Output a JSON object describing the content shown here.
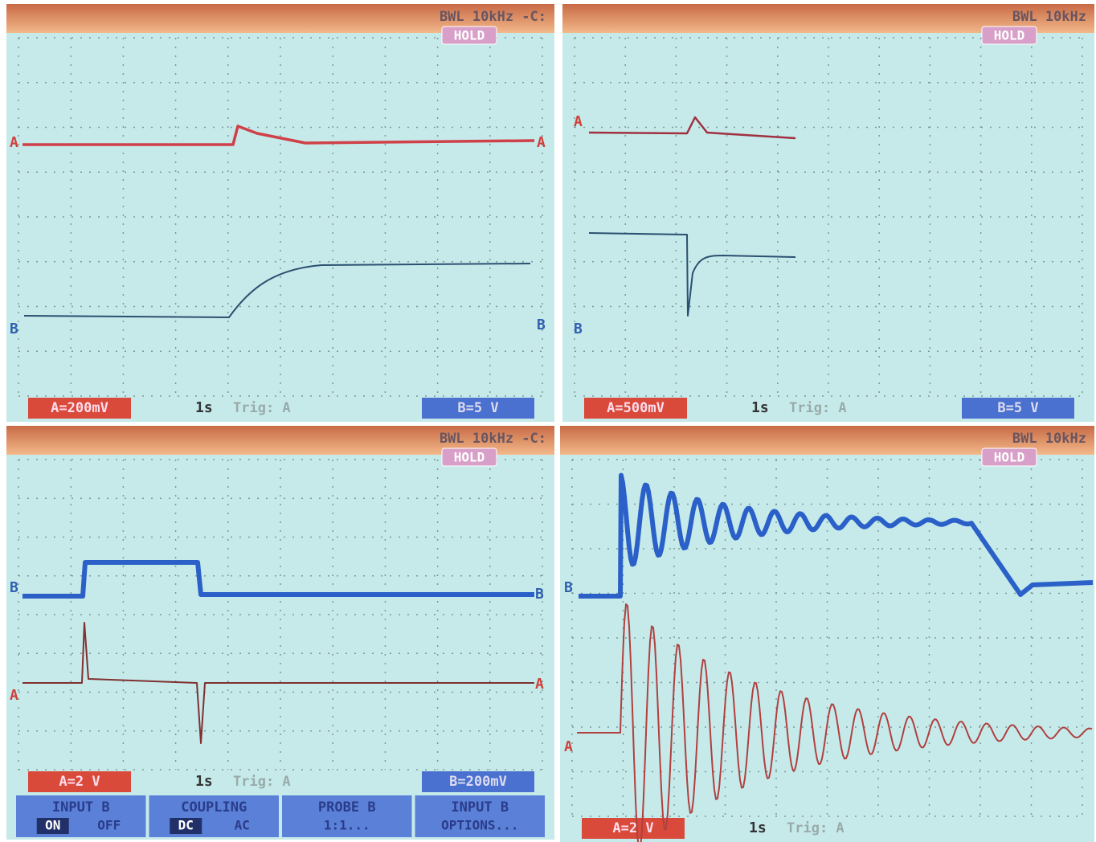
{
  "panels": [
    {
      "bandwidth": "BWL 10kHz -C:",
      "hold": "HOLD",
      "trace_labels": [
        "A",
        "B"
      ],
      "channel_a": "A=200mV",
      "timebase": "1s",
      "trigger": "Trig: A",
      "channel_b": "B=5 V"
    },
    {
      "bandwidth": "BWL 10kHz",
      "hold": "HOLD",
      "trace_labels": [
        "A",
        "B"
      ],
      "channel_a": "A=500mV",
      "timebase": "1s",
      "trigger": "Trig: A",
      "channel_b": "B=5 V"
    },
    {
      "bandwidth": "BWL 10kHz -C:",
      "hold": "HOLD",
      "trace_labels": [
        "B",
        "A"
      ],
      "channel_a": "A=2 V",
      "timebase": "1s",
      "trigger": "Trig: A",
      "channel_b": "B=200mV",
      "menu": [
        {
          "title": "INPUT B",
          "options": [
            "ON",
            "OFF"
          ]
        },
        {
          "title": "COUPLING",
          "options": [
            "DC",
            "AC"
          ]
        },
        {
          "title": "PROBE B",
          "options": [
            "1:1..."
          ]
        },
        {
          "title": "INPUT B",
          "options": [
            "OPTIONS..."
          ]
        }
      ]
    },
    {
      "bandwidth": "BWL 10kHz",
      "hold": "HOLD",
      "trace_labels": [
        "B",
        "A"
      ],
      "channel_a": "A=2 V",
      "timebase": "1s",
      "trigger": "Trig: A"
    }
  ]
}
